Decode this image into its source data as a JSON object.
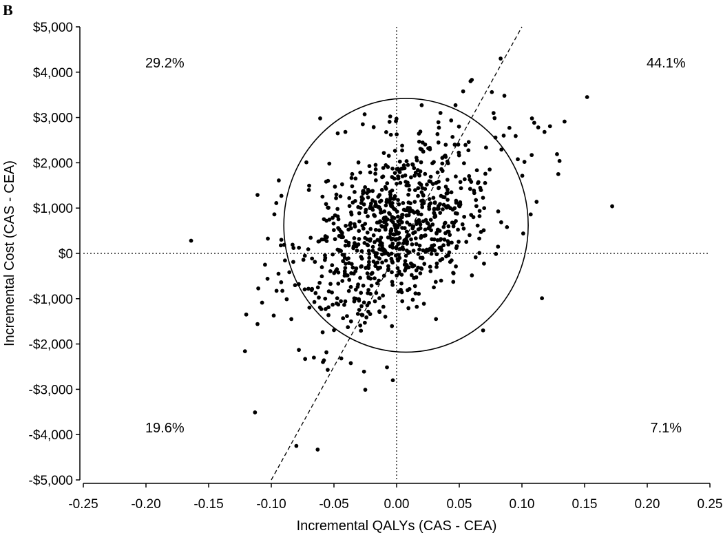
{
  "panel_label": "B",
  "chart_data": {
    "type": "scatter",
    "xlabel": "Incremental QALYs (CAS - CEA)",
    "ylabel": "Incremental Cost (CAS - CEA)",
    "xlim": [
      -0.25,
      0.25
    ],
    "ylim": [
      -5000,
      5000
    ],
    "x_ticks": [
      -0.25,
      -0.2,
      -0.15,
      -0.1,
      -0.05,
      0.0,
      0.05,
      0.1,
      0.15,
      0.2,
      0.25
    ],
    "x_tick_labels": [
      "-0.25",
      "-0.20",
      "-0.15",
      "-0.10",
      "-0.05",
      "0.00",
      "0.05",
      "0.10",
      "0.15",
      "0.20",
      "0.25"
    ],
    "y_ticks": [
      -5000,
      -4000,
      -3000,
      -2000,
      -1000,
      0,
      1000,
      2000,
      3000,
      4000,
      5000
    ],
    "y_tick_labels": [
      "-$5,000",
      "-$4,000",
      "-$3,000",
      "-$2,000",
      "-$1,000",
      "$0",
      "$1,000",
      "$2,000",
      "$3,000",
      "$4,000",
      "$5,000"
    ],
    "quadrant_labels": [
      {
        "text": "29.2%",
        "x": -0.185,
        "y": 4100
      },
      {
        "text": "44.1%",
        "x": 0.215,
        "y": 4100
      },
      {
        "text": "19.6%",
        "x": -0.185,
        "y": -3950
      },
      {
        "text": "7.1%",
        "x": 0.215,
        "y": -3950
      }
    ],
    "reference_lines": {
      "horizontal_y": 0,
      "vertical_x": 0,
      "wtp_line": {
        "x1": -0.1,
        "y1": -5000,
        "x2": 0.1,
        "y2": 5000
      }
    },
    "ellipse": {
      "cx": 0.0075,
      "cy": 620,
      "rx": 0.0975,
      "ry": 2800
    },
    "scatter_outliers": [
      [
        -0.164,
        280
      ],
      [
        -0.111,
        1290
      ],
      [
        -0.12,
        -1350
      ],
      [
        -0.121,
        -2160
      ],
      [
        -0.111,
        -1560
      ],
      [
        -0.113,
        -3510
      ],
      [
        -0.08,
        -4250
      ],
      [
        -0.063,
        -4330
      ],
      [
        -0.025,
        -3010
      ],
      [
        -0.026,
        -2610
      ],
      [
        -0.003,
        -2800
      ],
      [
        0.152,
        3450
      ],
      [
        0.172,
        1040
      ],
      [
        0.116,
        -990
      ],
      [
        0.134,
        2910
      ],
      [
        0.13,
        2040
      ],
      [
        0.128,
        2190
      ],
      [
        0.129,
        1750
      ],
      [
        0.118,
        2680
      ],
      [
        0.113,
        2780
      ],
      [
        0.108,
        2980
      ],
      [
        0.06,
        3830
      ],
      [
        0.059,
        3800
      ],
      [
        0.083,
        4300
      ],
      [
        0.076,
        3560
      ],
      [
        0.02,
        3270
      ],
      [
        0.095,
        2590
      ],
      [
        0.102,
        2020
      ],
      [
        0.107,
        860
      ],
      [
        0.101,
        440
      ],
      [
        0.069,
        -1700
      ],
      [
        -0.061,
        2980
      ],
      [
        -0.047,
        2650
      ],
      [
        -0.027,
        2850
      ],
      [
        -0.096,
        1110
      ],
      [
        -0.094,
        1610
      ],
      [
        -0.092,
        300
      ],
      [
        -0.105,
        -250
      ],
      [
        -0.103,
        -560
      ],
      [
        -0.072,
        2010
      ],
      [
        -0.055,
        -2570
      ],
      [
        -0.084,
        -1450
      ],
      [
        -0.078,
        -2130
      ],
      [
        -0.073,
        -2330
      ],
      [
        -0.066,
        -2300
      ],
      [
        -0.058,
        -2360
      ],
      [
        0.086,
        3480
      ],
      [
        0.047,
        3270
      ],
      [
        0.09,
        2770
      ],
      [
        0.035,
        3100
      ]
    ],
    "scatter_core": {
      "count": 870,
      "center": [
        0.0,
        600
      ],
      "sd": [
        0.038,
        1030
      ],
      "correlation": 0.45
    }
  }
}
